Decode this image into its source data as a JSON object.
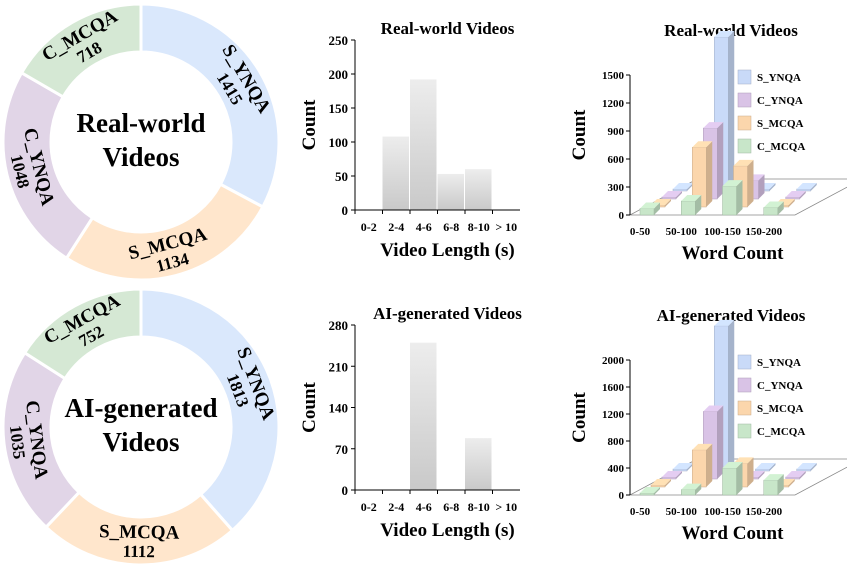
{
  "chart_data": [
    {
      "type": "pie",
      "style": "donut",
      "center_label_lines": [
        "Real-world",
        "Videos"
      ],
      "slices": [
        {
          "label": "S_YNQA",
          "value": 1415,
          "color": "#dae8fc"
        },
        {
          "label": "S_MCQA",
          "value": 1134,
          "color": "#ffe6cc"
        },
        {
          "label": "C_YNQA",
          "value": 1048,
          "color": "#e1d5e7"
        },
        {
          "label": "C_MCQA",
          "value": 718,
          "color": "#d5e8d4"
        }
      ]
    },
    {
      "type": "bar",
      "title": "Real-world Videos",
      "xlabel": "Video Length (s)",
      "ylabel": "Count",
      "categories": [
        "0-2",
        "2-4",
        "4-6",
        "6-8",
        "8-10",
        "> 10"
      ],
      "values": [
        0,
        108,
        192,
        53,
        60,
        0
      ],
      "ylim": [
        0,
        250
      ],
      "yticks": [
        0,
        50,
        100,
        150,
        200,
        250
      ]
    },
    {
      "type": "bar",
      "style": "3d",
      "title": "Real-world Videos",
      "xlabel": "Word Count",
      "ylabel": "Count",
      "categories": [
        "0-50",
        "50-100",
        "100-150",
        "150-200"
      ],
      "ylim": [
        0,
        1500
      ],
      "yticks": [
        0,
        300,
        600,
        900,
        1200,
        1500
      ],
      "legend_position": "top-right",
      "series": [
        {
          "name": "S_YNQA",
          "color": "#c9daf8",
          "values": [
            0,
            1650,
            20,
            0
          ]
        },
        {
          "name": "C_YNQA",
          "color": "#d9c3e6",
          "values": [
            0,
            760,
            200,
            20
          ]
        },
        {
          "name": "S_MCQA",
          "color": "#fbd6ac",
          "values": [
            0,
            640,
            440,
            20
          ]
        },
        {
          "name": "C_MCQA",
          "color": "#c8e6c9",
          "values": [
            70,
            150,
            310,
            80
          ]
        }
      ]
    },
    {
      "type": "pie",
      "style": "donut",
      "center_label_lines": [
        "AI-generated",
        "Videos"
      ],
      "slices": [
        {
          "label": "S_YNQA",
          "value": 1813,
          "color": "#dae8fc"
        },
        {
          "label": "S_MCQA",
          "value": 1112,
          "color": "#ffe6cc"
        },
        {
          "label": "C_YNQA",
          "value": 1035,
          "color": "#e1d5e7"
        },
        {
          "label": "C_MCQA",
          "value": 752,
          "color": "#d5e8d4"
        }
      ]
    },
    {
      "type": "bar",
      "title": "AI-generated Videos",
      "xlabel": "Video Length (s)",
      "ylabel": "Count",
      "categories": [
        "0-2",
        "2-4",
        "4-6",
        "6-8",
        "8-10",
        "> 10"
      ],
      "values": [
        0,
        0,
        250,
        0,
        88,
        0
      ],
      "ylim": [
        0,
        280
      ],
      "yticks": [
        0,
        70,
        140,
        210,
        280
      ]
    },
    {
      "type": "bar",
      "style": "3d",
      "title": "AI-generated Videos",
      "xlabel": "Word Count",
      "ylabel": "Count",
      "categories": [
        "0-50",
        "50-100",
        "100-150",
        "150-200"
      ],
      "ylim": [
        0,
        2000
      ],
      "yticks": [
        0,
        400,
        800,
        1200,
        1600,
        2000
      ],
      "legend_position": "top-right",
      "series": [
        {
          "name": "S_YNQA",
          "color": "#c9daf8",
          "values": [
            0,
            2150,
            0,
            0
          ]
        },
        {
          "name": "C_YNQA",
          "color": "#d9c3e6",
          "values": [
            0,
            1000,
            20,
            0
          ]
        },
        {
          "name": "S_MCQA",
          "color": "#fbd6ac",
          "values": [
            0,
            550,
            350,
            20
          ]
        },
        {
          "name": "C_MCQA",
          "color": "#c8e6c9",
          "values": [
            0,
            80,
            400,
            220
          ]
        }
      ]
    }
  ]
}
